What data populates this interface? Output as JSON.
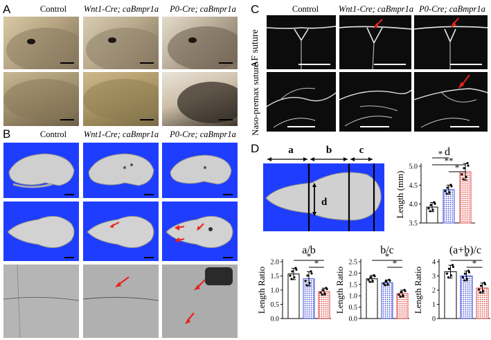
{
  "panels": {
    "A": "A",
    "B": "B",
    "C": "C",
    "D": "D"
  },
  "columns": {
    "control": "Control",
    "wnt1": "Wnt1-Cre; caBmpr1a",
    "p0": "P0-Cre; caBmpr1a"
  },
  "panel_c_rows": {
    "af": "AF suture",
    "naso": "Naso-premax suture"
  },
  "diagram": {
    "a": "a",
    "b": "b",
    "c": "c",
    "d": "d"
  },
  "colors": {
    "control": "#ffffff",
    "wnt1": "#3b4bd8",
    "p0": "#e0403a",
    "ct_blue": "#1f3dff",
    "arrow": "#e8231e"
  },
  "chart_data": [
    {
      "type": "bar",
      "title": "d",
      "ylabel": "Length (mm)",
      "categories": [
        "Control",
        "Wnt1-Cre; caBmpr1a",
        "P0-Cre; caBmpr1a"
      ],
      "values": [
        3.92,
        4.38,
        4.85
      ],
      "errors": [
        0.12,
        0.12,
        0.22
      ],
      "ylim": [
        3.5,
        5.0
      ],
      "yticks": [
        "3.5",
        "4.0",
        "4.5",
        "5.0"
      ],
      "significance": [
        "*",
        "**",
        "*"
      ]
    },
    {
      "type": "bar",
      "title": "a/b",
      "ylabel": "Length Ratio",
      "categories": [
        "Control",
        "Wnt1-Cre; caBmpr1a",
        "P0-Cre; caBmpr1a"
      ],
      "values": [
        1.57,
        1.4,
        0.95
      ],
      "errors": [
        0.2,
        0.25,
        0.12
      ],
      "ylim": [
        0.0,
        2.0
      ],
      "yticks": [
        "0.0",
        "0.5",
        "1.0",
        "1.5",
        "2.0"
      ],
      "significance": [
        "*",
        "*"
      ]
    },
    {
      "type": "bar",
      "title": "b/c",
      "ylabel": "Length Ratio",
      "categories": [
        "Control",
        "Wnt1-Cre; caBmpr1a",
        "P0-Cre; caBmpr1a"
      ],
      "values": [
        1.75,
        1.58,
        1.1
      ],
      "errors": [
        0.15,
        0.12,
        0.15
      ],
      "ylim": [
        0.0,
        2.5
      ],
      "yticks": [
        "0.0",
        "0.5",
        "1.0",
        "1.5",
        "2.0",
        "2.5"
      ],
      "significance": [
        "*",
        "*"
      ]
    },
    {
      "type": "bar",
      "title": "(a+b)/c",
      "ylabel": "Length Ratio",
      "categories": [
        "Control",
        "Wnt1-Cre; caBmpr1a",
        "P0-Cre; caBmpr1a"
      ],
      "values": [
        3.3,
        3.0,
        2.15
      ],
      "errors": [
        0.45,
        0.35,
        0.35
      ],
      "ylim": [
        0,
        4
      ],
      "yticks": [
        "0",
        "1",
        "2",
        "3",
        "4"
      ],
      "significance": [
        "*",
        "*"
      ]
    }
  ]
}
